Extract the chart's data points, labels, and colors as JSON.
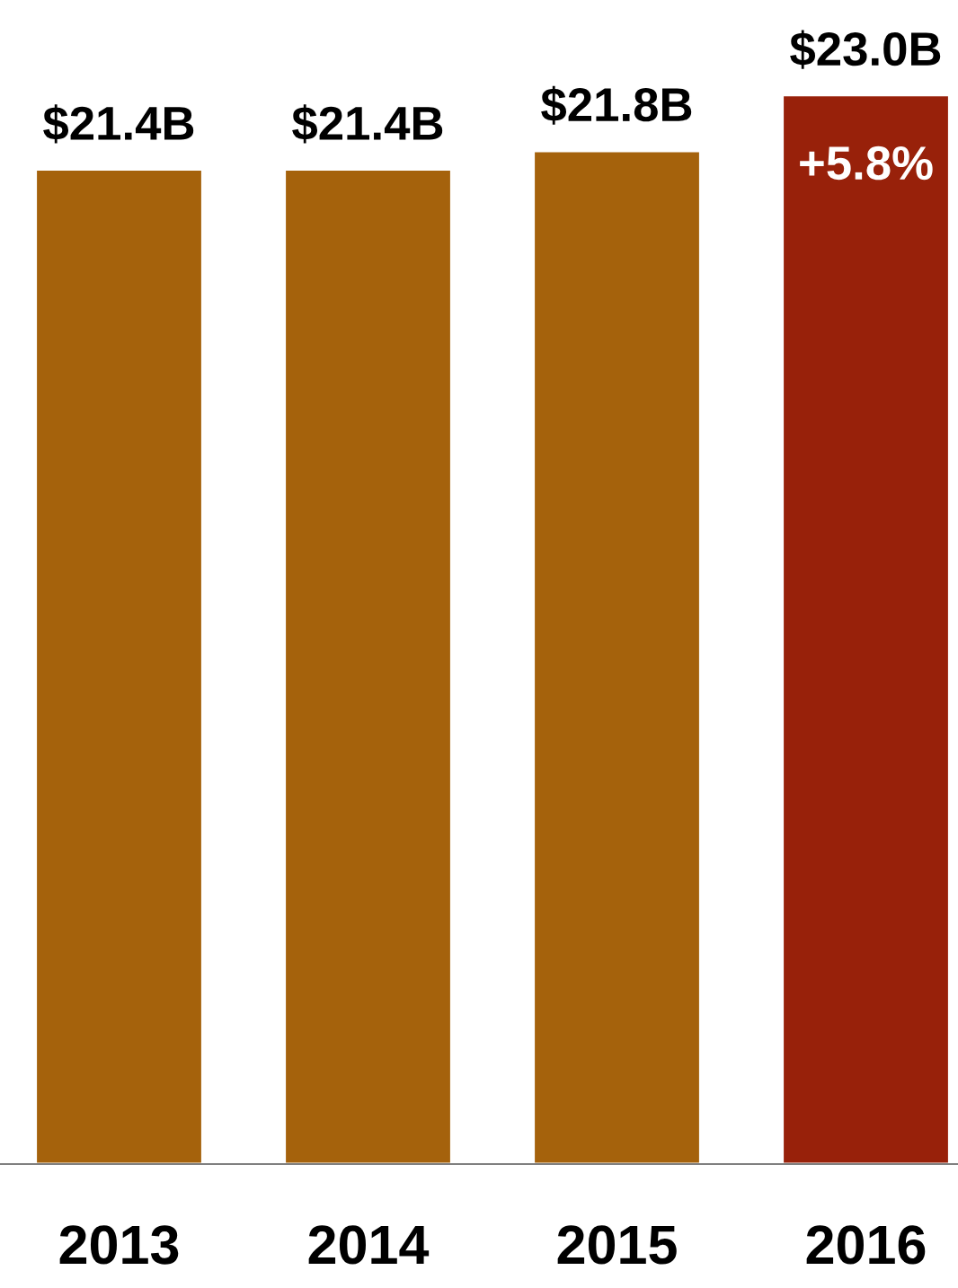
{
  "chart_data": {
    "type": "bar",
    "categories": [
      "2013",
      "2014",
      "2015",
      "2016"
    ],
    "values": [
      21.4,
      21.4,
      21.8,
      23.0
    ],
    "colors": [
      "#a5620c",
      "#a5620c",
      "#a5620c",
      "#98210a"
    ],
    "value_labels": [
      "$21.4B",
      "$21.4B",
      "$21.8B",
      "$23.0B"
    ],
    "annotations": [
      "+5.8%"
    ],
    "grid": false,
    "legend": false
  }
}
